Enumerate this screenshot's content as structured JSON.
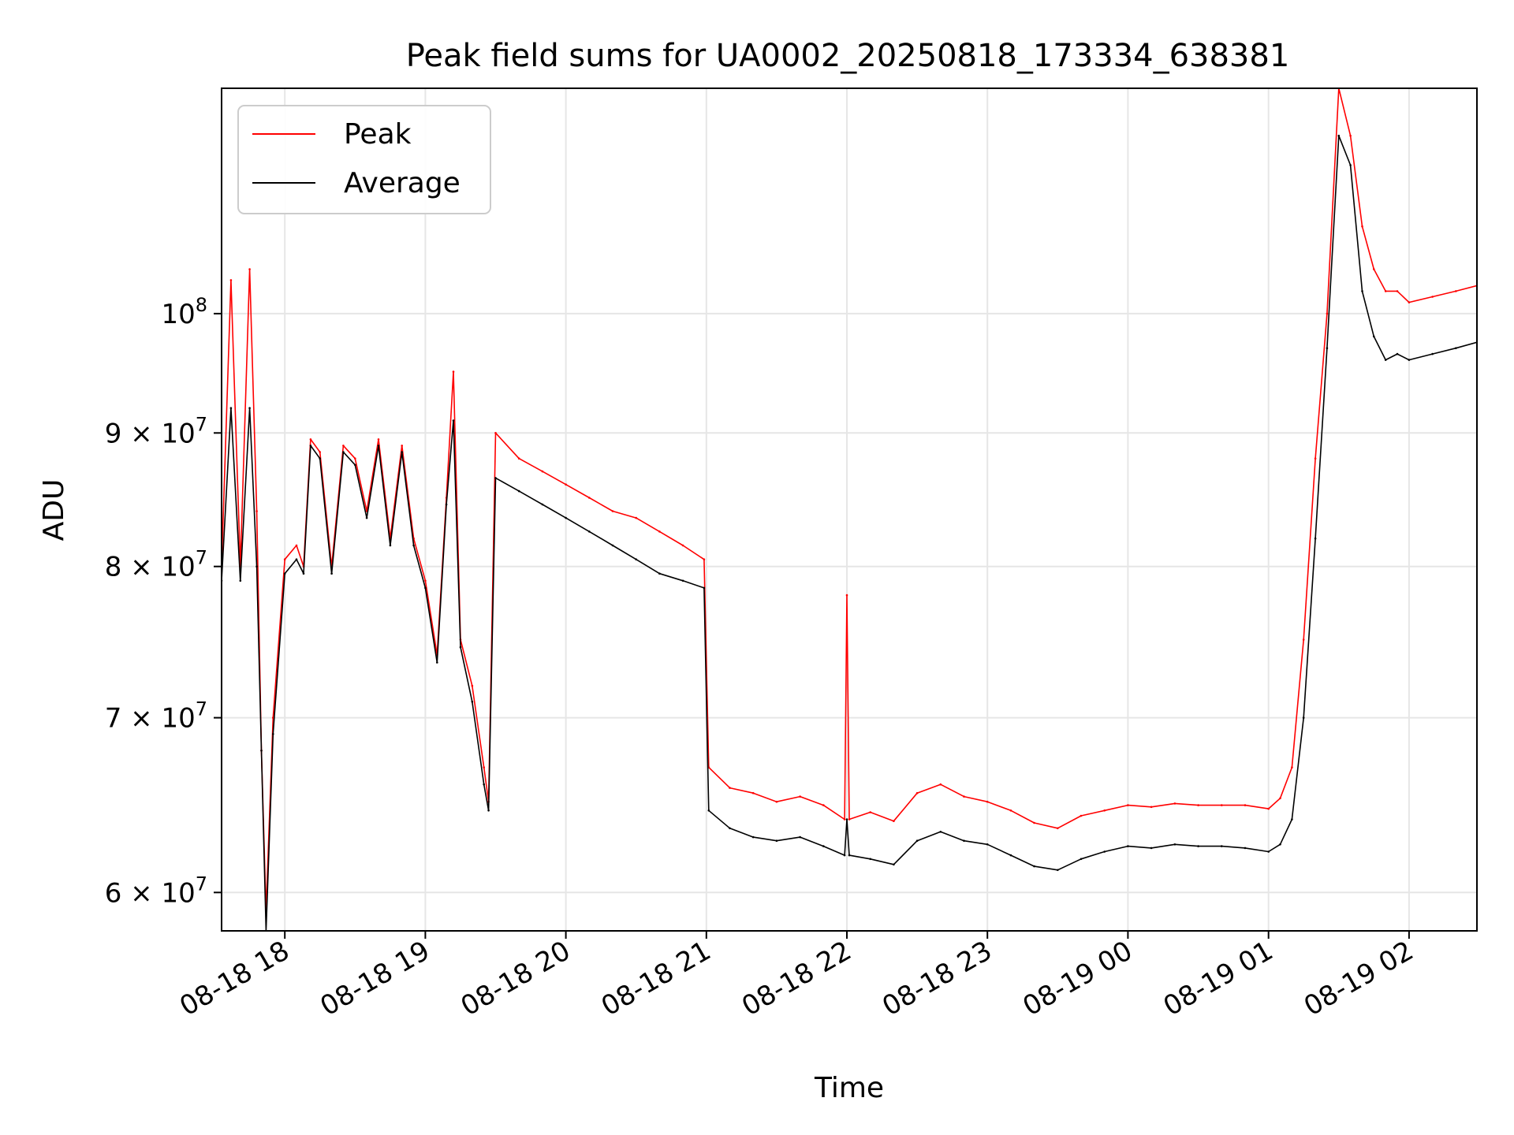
{
  "chart_data": {
    "type": "line",
    "title": "Peak field sums for UA0002_20250818_173334_638381",
    "xlabel": "Time",
    "ylabel": "ADU",
    "yscale": "log",
    "grid": true,
    "legend_position": "upper-left",
    "xlim": [
      "2025-08-18 17:33",
      "2025-08-19 02:29"
    ],
    "ylim": [
      58000000,
      122000000
    ],
    "x_ticks": [
      {
        "value": "2025-08-18 18:00",
        "label": "08-18 18"
      },
      {
        "value": "2025-08-18 19:00",
        "label": "08-18 19"
      },
      {
        "value": "2025-08-18 20:00",
        "label": "08-18 20"
      },
      {
        "value": "2025-08-18 21:00",
        "label": "08-18 21"
      },
      {
        "value": "2025-08-18 22:00",
        "label": "08-18 22"
      },
      {
        "value": "2025-08-18 23:00",
        "label": "08-18 23"
      },
      {
        "value": "2025-08-19 00:00",
        "label": "08-19 00"
      },
      {
        "value": "2025-08-19 01:00",
        "label": "08-19 01"
      },
      {
        "value": "2025-08-19 02:00",
        "label": "08-19 02"
      }
    ],
    "y_ticks": [
      {
        "value": 60000000,
        "label": "6 × 10⁷",
        "mantissa": "6",
        "exp": "7"
      },
      {
        "value": 70000000,
        "label": "7 × 10⁷",
        "mantissa": "7",
        "exp": "7"
      },
      {
        "value": 80000000,
        "label": "8 × 10⁷",
        "mantissa": "8",
        "exp": "7"
      },
      {
        "value": 90000000,
        "label": "9 × 10⁷",
        "mantissa": "9",
        "exp": "7"
      },
      {
        "value": 100000000,
        "label": "10⁸",
        "mantissa": "",
        "exp": "8"
      }
    ],
    "series": [
      {
        "name": "Peak",
        "color": "#ff0000",
        "x": [
          "2025-08-18 17:33",
          "2025-08-18 17:37",
          "2025-08-18 17:41",
          "2025-08-18 17:45",
          "2025-08-18 17:48",
          "2025-08-18 17:50",
          "2025-08-18 17:52",
          "2025-08-18 17:55",
          "2025-08-18 18:00",
          "2025-08-18 18:05",
          "2025-08-18 18:08",
          "2025-08-18 18:11",
          "2025-08-18 18:15",
          "2025-08-18 18:20",
          "2025-08-18 18:25",
          "2025-08-18 18:30",
          "2025-08-18 18:35",
          "2025-08-18 18:40",
          "2025-08-18 18:45",
          "2025-08-18 18:50",
          "2025-08-18 18:55",
          "2025-08-18 19:00",
          "2025-08-18 19:05",
          "2025-08-18 19:09",
          "2025-08-18 19:12",
          "2025-08-18 19:15",
          "2025-08-18 19:20",
          "2025-08-18 19:25",
          "2025-08-18 19:27",
          "2025-08-18 19:30",
          "2025-08-18 19:40",
          "2025-08-18 19:50",
          "2025-08-18 20:00",
          "2025-08-18 20:10",
          "2025-08-18 20:20",
          "2025-08-18 20:30",
          "2025-08-18 20:40",
          "2025-08-18 20:50",
          "2025-08-18 20:59",
          "2025-08-18 21:01",
          "2025-08-18 21:10",
          "2025-08-18 21:20",
          "2025-08-18 21:30",
          "2025-08-18 21:40",
          "2025-08-18 21:50",
          "2025-08-18 21:59",
          "2025-08-18 22:00",
          "2025-08-18 22:01",
          "2025-08-18 22:10",
          "2025-08-18 22:20",
          "2025-08-18 22:30",
          "2025-08-18 22:40",
          "2025-08-18 22:50",
          "2025-08-18 23:00",
          "2025-08-18 23:10",
          "2025-08-18 23:20",
          "2025-08-18 23:30",
          "2025-08-18 23:40",
          "2025-08-18 23:50",
          "2025-08-19 00:00",
          "2025-08-19 00:10",
          "2025-08-19 00:20",
          "2025-08-19 00:30",
          "2025-08-19 00:40",
          "2025-08-19 00:50",
          "2025-08-19 01:00",
          "2025-08-19 01:05",
          "2025-08-19 01:10",
          "2025-08-19 01:15",
          "2025-08-19 01:20",
          "2025-08-19 01:25",
          "2025-08-19 01:30",
          "2025-08-19 01:35",
          "2025-08-19 01:40",
          "2025-08-19 01:45",
          "2025-08-19 01:50",
          "2025-08-19 01:55",
          "2025-08-19 02:00",
          "2025-08-19 02:10",
          "2025-08-19 02:20",
          "2025-08-19 02:29"
        ],
        "y": [
          80000000,
          103000000,
          80000000,
          104000000,
          84000000,
          68000000,
          59000000,
          70000000,
          80500000,
          81500000,
          80000000,
          89500000,
          88500000,
          80000000,
          89000000,
          88000000,
          84000000,
          89500000,
          82000000,
          89000000,
          82000000,
          79000000,
          74000000,
          85000000,
          95000000,
          75000000,
          72000000,
          67000000,
          65000000,
          90000000,
          88000000,
          87000000,
          86000000,
          85000000,
          84000000,
          83500000,
          82500000,
          81500000,
          80500000,
          67000000,
          65800000,
          65500000,
          65000000,
          65300000,
          64800000,
          64000000,
          78000000,
          64000000,
          64400000,
          63900000,
          65500000,
          66000000,
          65300000,
          65000000,
          64500000,
          63800000,
          63500000,
          64200000,
          64500000,
          64800000,
          64700000,
          64900000,
          64800000,
          64800000,
          64800000,
          64600000,
          65200000,
          67000000,
          75000000,
          88000000,
          100000000,
          122000000,
          117000000,
          108000000,
          104000000,
          102000000,
          102000000,
          101000000,
          101500000,
          102000000,
          102500000
        ]
      },
      {
        "name": "Average",
        "color": "#000000",
        "x": [
          "2025-08-18 17:33",
          "2025-08-18 17:37",
          "2025-08-18 17:41",
          "2025-08-18 17:45",
          "2025-08-18 17:48",
          "2025-08-18 17:50",
          "2025-08-18 17:52",
          "2025-08-18 17:55",
          "2025-08-18 18:00",
          "2025-08-18 18:05",
          "2025-08-18 18:08",
          "2025-08-18 18:11",
          "2025-08-18 18:15",
          "2025-08-18 18:20",
          "2025-08-18 18:25",
          "2025-08-18 18:30",
          "2025-08-18 18:35",
          "2025-08-18 18:40",
          "2025-08-18 18:45",
          "2025-08-18 18:50",
          "2025-08-18 18:55",
          "2025-08-18 19:00",
          "2025-08-18 19:05",
          "2025-08-18 19:09",
          "2025-08-18 19:12",
          "2025-08-18 19:15",
          "2025-08-18 19:20",
          "2025-08-18 19:25",
          "2025-08-18 19:27",
          "2025-08-18 19:30",
          "2025-08-18 19:40",
          "2025-08-18 19:50",
          "2025-08-18 20:00",
          "2025-08-18 20:10",
          "2025-08-18 20:20",
          "2025-08-18 20:30",
          "2025-08-18 20:40",
          "2025-08-18 20:50",
          "2025-08-18 20:59",
          "2025-08-18 21:01",
          "2025-08-18 21:10",
          "2025-08-18 21:20",
          "2025-08-18 21:30",
          "2025-08-18 21:40",
          "2025-08-18 21:50",
          "2025-08-18 21:59",
          "2025-08-18 22:00",
          "2025-08-18 22:01",
          "2025-08-18 22:10",
          "2025-08-18 22:20",
          "2025-08-18 22:30",
          "2025-08-18 22:40",
          "2025-08-18 22:50",
          "2025-08-18 23:00",
          "2025-08-18 23:10",
          "2025-08-18 23:20",
          "2025-08-18 23:30",
          "2025-08-18 23:40",
          "2025-08-18 23:50",
          "2025-08-19 00:00",
          "2025-08-19 00:10",
          "2025-08-19 00:20",
          "2025-08-19 00:30",
          "2025-08-19 00:40",
          "2025-08-19 00:50",
          "2025-08-19 01:00",
          "2025-08-19 01:05",
          "2025-08-19 01:10",
          "2025-08-19 01:15",
          "2025-08-19 01:20",
          "2025-08-19 01:25",
          "2025-08-19 01:30",
          "2025-08-19 01:35",
          "2025-08-19 01:40",
          "2025-08-19 01:45",
          "2025-08-19 01:50",
          "2025-08-19 01:55",
          "2025-08-19 02:00",
          "2025-08-19 02:10",
          "2025-08-19 02:20",
          "2025-08-19 02:29"
        ],
        "y": [
          79000000,
          92000000,
          79000000,
          92000000,
          80000000,
          68000000,
          58000000,
          69000000,
          79500000,
          80500000,
          79500000,
          89000000,
          88000000,
          79500000,
          88500000,
          87500000,
          83500000,
          89000000,
          81500000,
          88500000,
          81500000,
          78500000,
          73500000,
          84500000,
          91000000,
          74500000,
          71000000,
          66000000,
          64500000,
          86500000,
          85500000,
          84500000,
          83500000,
          82500000,
          81500000,
          80500000,
          79500000,
          79000000,
          78500000,
          64500000,
          63500000,
          63000000,
          62800000,
          63000000,
          62500000,
          62000000,
          64000000,
          62000000,
          61800000,
          61500000,
          62800000,
          63300000,
          62800000,
          62600000,
          62000000,
          61400000,
          61200000,
          61800000,
          62200000,
          62500000,
          62400000,
          62600000,
          62500000,
          62500000,
          62400000,
          62200000,
          62600000,
          64000000,
          70000000,
          82000000,
          97000000,
          117000000,
          114000000,
          102000000,
          98000000,
          96000000,
          96500000,
          96000000,
          96500000,
          97000000,
          97500000
        ]
      }
    ]
  }
}
